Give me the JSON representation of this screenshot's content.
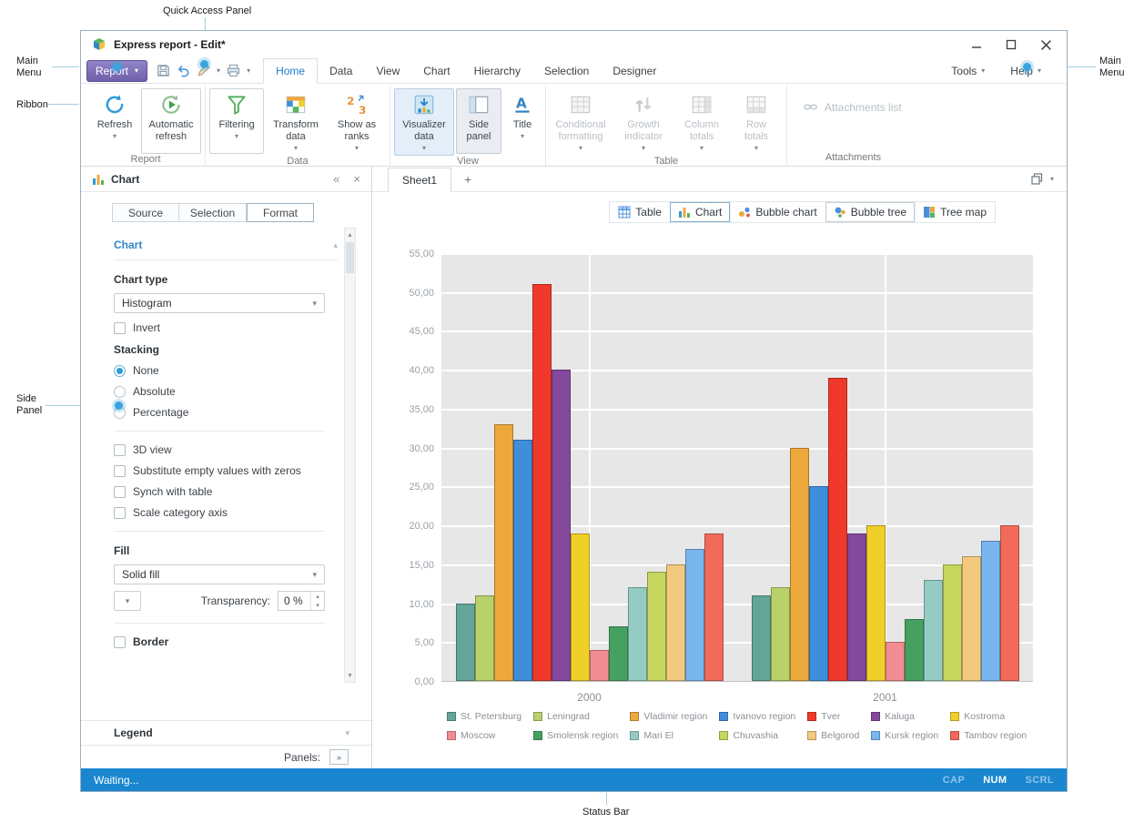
{
  "annotations": {
    "quick_access_panel": "Quick Access Panel",
    "main_menu_left": [
      "Main",
      "Menu"
    ],
    "ribbon": "Ribbon",
    "side_panel": [
      "Side",
      "Panel"
    ],
    "main_menu_right": [
      "Main",
      "Menu"
    ],
    "status_bar": "Status Bar"
  },
  "window": {
    "title": "Express report - Edit*",
    "menu": {
      "report_button": "Report",
      "tabs": [
        "Home",
        "Data",
        "View",
        "Chart",
        "Hierarchy",
        "Selection",
        "Designer"
      ],
      "active_tab": "Home",
      "tools": "Tools",
      "help": "Help"
    },
    "ribbon": {
      "group_labels": [
        "Report",
        "Data",
        "View",
        "Table",
        "Attachments"
      ],
      "buttons": {
        "refresh": "Refresh",
        "automatic_refresh": "Automatic refresh",
        "filtering": "Filtering",
        "transform_data": "Transform data",
        "show_as_ranks": "Show as ranks",
        "visualizer_data": "Visualizer data",
        "side_panel": "Side panel",
        "title": "Title",
        "conditional_formatting": "Conditional formatting",
        "growth_indicator": "Growth indicator",
        "column_totals": "Column totals",
        "row_totals": "Row totals",
        "attachments_list": "Attachments list"
      }
    },
    "side_panel": {
      "title": "Chart",
      "tabs": [
        "Source",
        "Selection",
        "Format"
      ],
      "active_tab": "Format",
      "section_chart": "Chart",
      "section_legend": "Legend",
      "chart_type_label": "Chart type",
      "chart_type_value": "Histogram",
      "invert": "Invert",
      "stacking_label": "Stacking",
      "stacking_options": [
        "None",
        "Absolute",
        "Percentage"
      ],
      "stacking_selected": "None",
      "options": [
        "3D view",
        "Substitute empty values with zeros",
        "Synch with table",
        "Scale category axis"
      ],
      "fill_label": "Fill",
      "fill_value": "Solid fill",
      "transparency_label": "Transparency:",
      "transparency_value": "0 %",
      "border": "Border",
      "panels_label": "Panels:"
    },
    "sheet": {
      "tab": "Sheet1",
      "add_button": "+"
    },
    "view_switcher": {
      "items": [
        "Table",
        "Chart",
        "Bubble chart",
        "Bubble tree",
        "Tree map"
      ],
      "active": "Chart"
    },
    "status_bar": {
      "message": "Waiting...",
      "indicators": [
        "CAP",
        "NUM",
        "SCRL"
      ],
      "active_indicator": "NUM"
    }
  },
  "chart_data": {
    "type": "bar",
    "title": "",
    "categories": [
      "2000",
      "2001"
    ],
    "series": [
      {
        "name": "St. Petersburg",
        "color": "#63a598",
        "values": [
          10,
          11
        ]
      },
      {
        "name": "Leningrad",
        "color": "#b8d16b",
        "values": [
          11,
          12
        ]
      },
      {
        "name": "Vladimir region",
        "color": "#eda83c",
        "values": [
          33,
          30
        ]
      },
      {
        "name": "Ivanovo region",
        "color": "#3f8edb",
        "values": [
          31,
          25
        ]
      },
      {
        "name": "Tver",
        "color": "#f0392b",
        "values": [
          51,
          39
        ]
      },
      {
        "name": "Kaluga",
        "color": "#84489c",
        "values": [
          40,
          19
        ]
      },
      {
        "name": "Kostroma",
        "color": "#efd029",
        "values": [
          19,
          20
        ]
      },
      {
        "name": "Moscow",
        "color": "#f28d93",
        "values": [
          4,
          5
        ]
      },
      {
        "name": "Smolensk region",
        "color": "#46a060",
        "values": [
          7,
          8
        ]
      },
      {
        "name": "Mari El",
        "color": "#94ccc3",
        "values": [
          12,
          13
        ]
      },
      {
        "name": "Chuvashia",
        "color": "#c6d65e",
        "values": [
          14,
          15
        ]
      },
      {
        "name": "Belgorod",
        "color": "#f3c97e",
        "values": [
          15,
          16
        ]
      },
      {
        "name": "Kursk region",
        "color": "#79b5ee",
        "values": [
          17,
          18
        ]
      },
      {
        "name": "Tambov region",
        "color": "#f26a5a",
        "values": [
          19,
          20
        ]
      }
    ],
    "xlabel": "",
    "ylabel": "",
    "ylim": [
      0,
      55
    ],
    "ytick_step": 5,
    "ytick_labels": [
      "0,00",
      "5,00",
      "10,00",
      "15,00",
      "20,00",
      "25,00",
      "30,00",
      "35,00",
      "40,00",
      "45,00",
      "50,00",
      "55,00"
    ],
    "grid": true,
    "legend_position": "bottom",
    "plot_background": "#e7e7e7"
  }
}
